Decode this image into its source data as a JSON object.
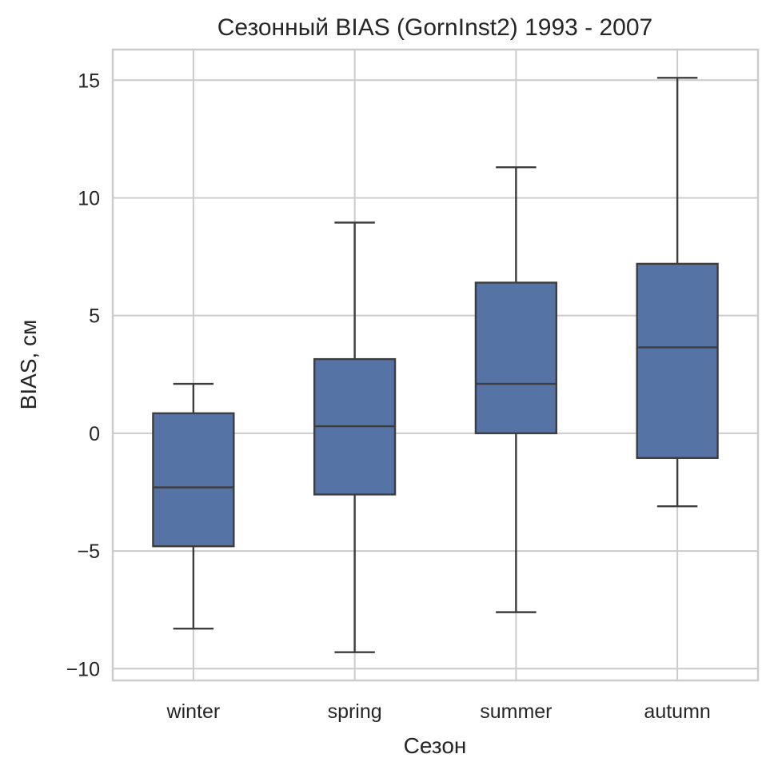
{
  "chart_data": {
    "type": "box",
    "title": "Сезонный BIAS (GornInst2) 1993 - 2007",
    "xlabel": "Сезон",
    "ylabel": "BIAS, см",
    "ylim": [
      -10.5,
      16.3
    ],
    "yticks": [
      -10,
      -5,
      0,
      5,
      10,
      15
    ],
    "ytick_labels": [
      "−10",
      "−5",
      "0",
      "5",
      "10",
      "15"
    ],
    "grid": true,
    "box_color": "#5573a4",
    "line_color": "#3d3d3d",
    "categories": [
      "winter",
      "spring",
      "summer",
      "autumn"
    ],
    "series": [
      {
        "name": "winter",
        "whisker_low": -8.3,
        "q1": -4.8,
        "median": -2.3,
        "q3": 0.85,
        "whisker_high": 2.1
      },
      {
        "name": "spring",
        "whisker_low": -9.3,
        "q1": -2.6,
        "median": 0.3,
        "q3": 3.15,
        "whisker_high": 8.95
      },
      {
        "name": "summer",
        "whisker_low": -7.6,
        "q1": 0.0,
        "median": 2.1,
        "q3": 6.4,
        "whisker_high": 11.3
      },
      {
        "name": "autumn",
        "whisker_low": -3.1,
        "q1": -1.05,
        "median": 3.65,
        "q3": 7.2,
        "whisker_high": 15.1
      }
    ]
  }
}
